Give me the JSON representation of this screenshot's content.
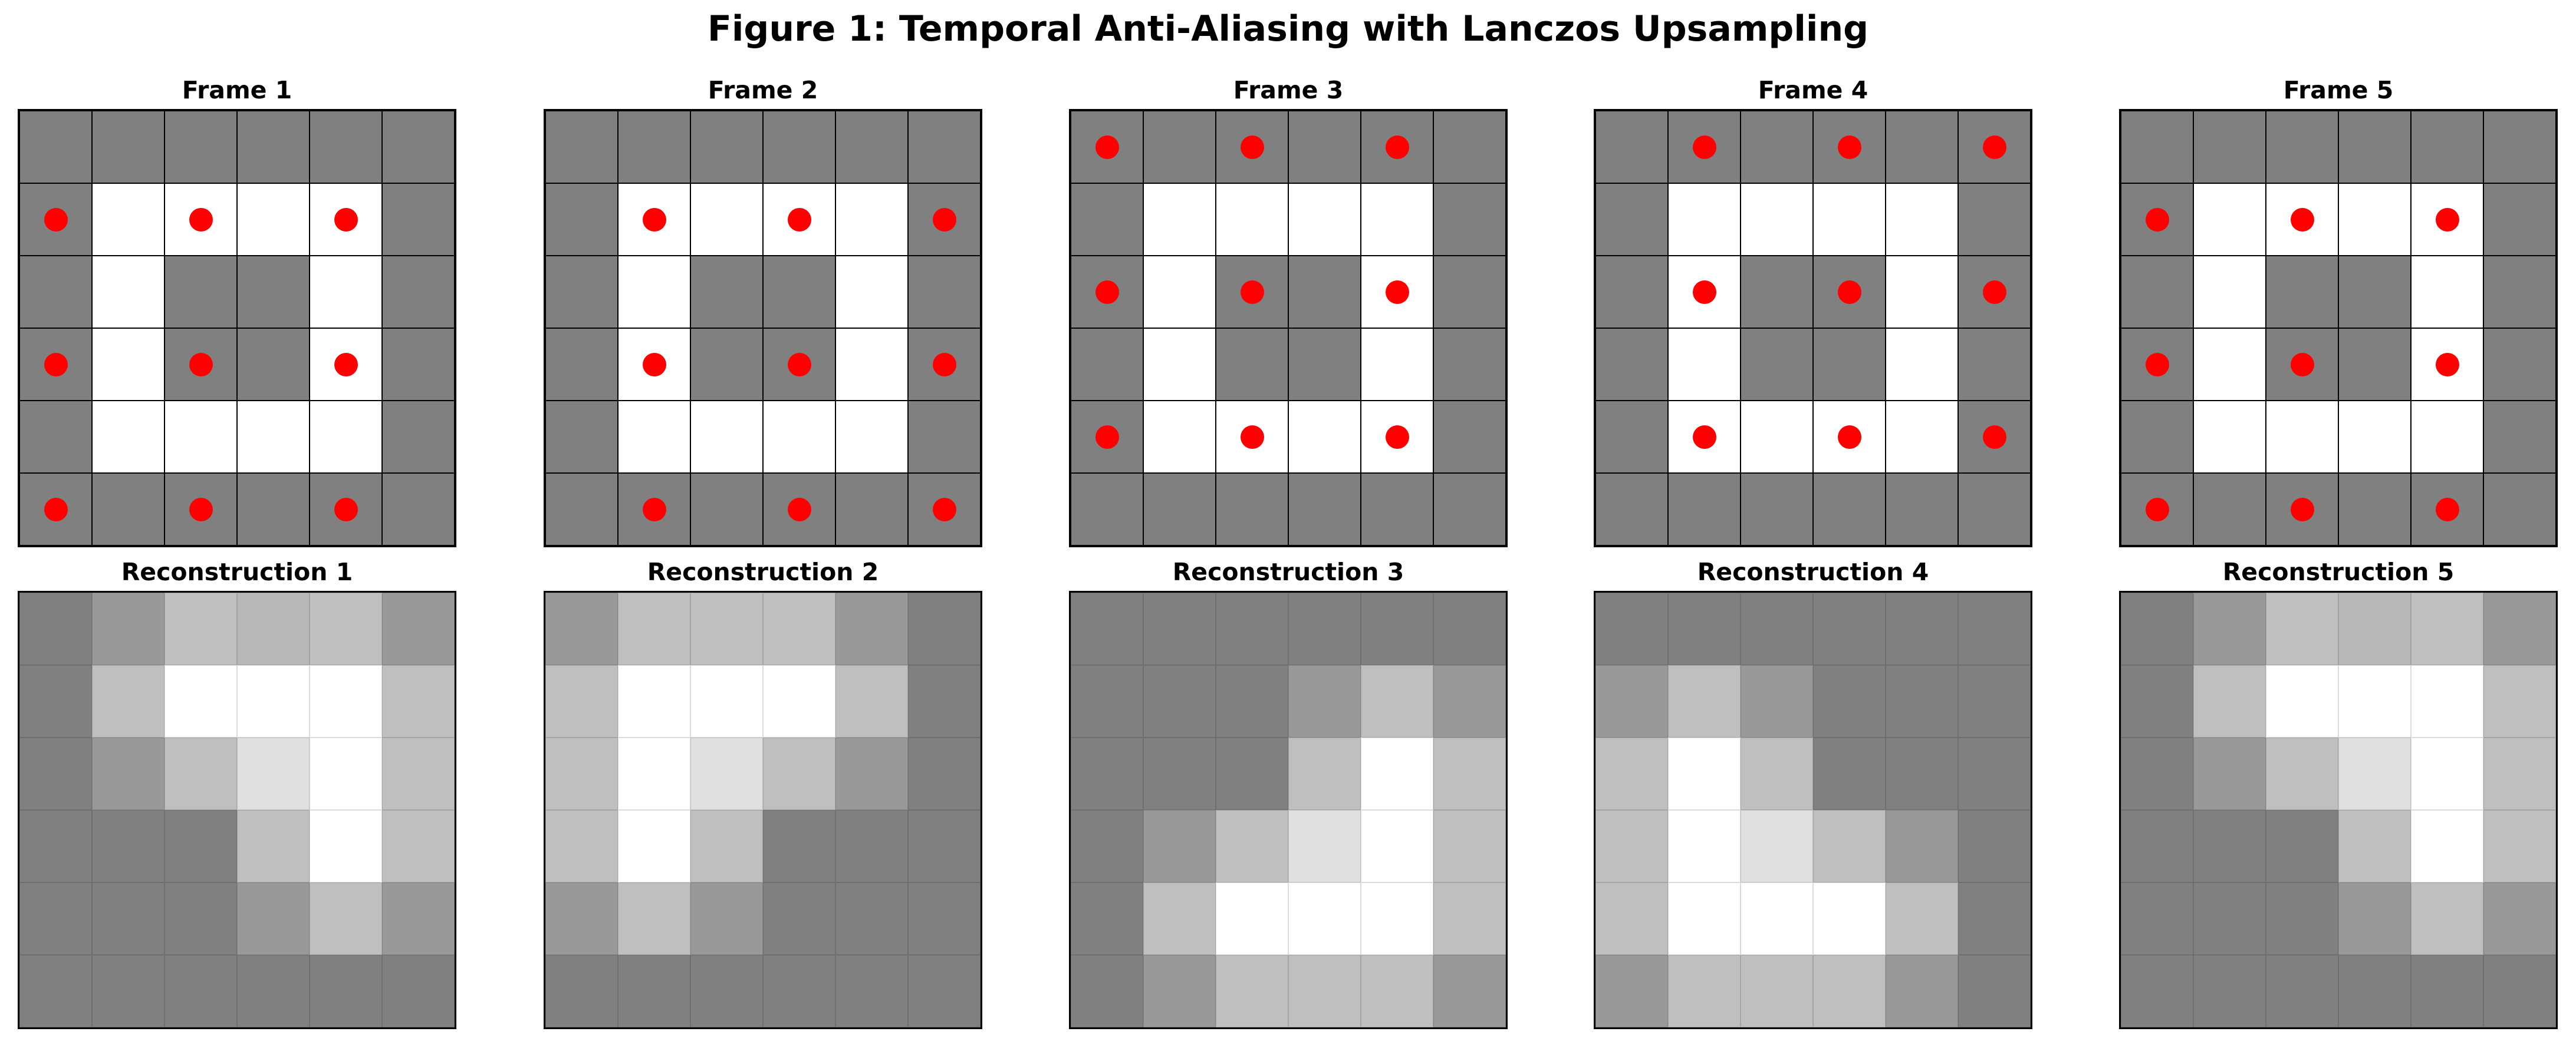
{
  "figure": {
    "title": "Figure 1: Temporal Anti-Aliasing with Lanczos Upsampling"
  },
  "colors": {
    "dark": "#808080",
    "light": "#ffffff",
    "sample_dot": "#ff0000"
  },
  "frames": [
    {
      "title": "Frame 1",
      "cells": [
        [
          0,
          0,
          0,
          0,
          0,
          0
        ],
        [
          0,
          1,
          1,
          1,
          1,
          0
        ],
        [
          0,
          1,
          0,
          0,
          1,
          0
        ],
        [
          0,
          1,
          0,
          0,
          1,
          0
        ],
        [
          0,
          1,
          1,
          1,
          1,
          0
        ],
        [
          0,
          0,
          0,
          0,
          0,
          0
        ]
      ],
      "samples": [
        [
          1,
          0
        ],
        [
          1,
          2
        ],
        [
          1,
          4
        ],
        [
          3,
          0
        ],
        [
          3,
          2
        ],
        [
          3,
          4
        ],
        [
          5,
          0
        ],
        [
          5,
          2
        ],
        [
          5,
          4
        ]
      ]
    },
    {
      "title": "Frame 2",
      "cells": [
        [
          0,
          0,
          0,
          0,
          0,
          0
        ],
        [
          0,
          1,
          1,
          1,
          1,
          0
        ],
        [
          0,
          1,
          0,
          0,
          1,
          0
        ],
        [
          0,
          1,
          0,
          0,
          1,
          0
        ],
        [
          0,
          1,
          1,
          1,
          1,
          0
        ],
        [
          0,
          0,
          0,
          0,
          0,
          0
        ]
      ],
      "samples": [
        [
          1,
          1
        ],
        [
          1,
          3
        ],
        [
          1,
          5
        ],
        [
          3,
          1
        ],
        [
          3,
          3
        ],
        [
          3,
          5
        ],
        [
          5,
          1
        ],
        [
          5,
          3
        ],
        [
          5,
          5
        ]
      ]
    },
    {
      "title": "Frame 3",
      "cells": [
        [
          0,
          0,
          0,
          0,
          0,
          0
        ],
        [
          0,
          1,
          1,
          1,
          1,
          0
        ],
        [
          0,
          1,
          0,
          0,
          1,
          0
        ],
        [
          0,
          1,
          0,
          0,
          1,
          0
        ],
        [
          0,
          1,
          1,
          1,
          1,
          0
        ],
        [
          0,
          0,
          0,
          0,
          0,
          0
        ]
      ],
      "samples": [
        [
          0,
          0
        ],
        [
          0,
          2
        ],
        [
          0,
          4
        ],
        [
          2,
          0
        ],
        [
          2,
          2
        ],
        [
          2,
          4
        ],
        [
          4,
          0
        ],
        [
          4,
          2
        ],
        [
          4,
          4
        ]
      ]
    },
    {
      "title": "Frame 4",
      "cells": [
        [
          0,
          0,
          0,
          0,
          0,
          0
        ],
        [
          0,
          1,
          1,
          1,
          1,
          0
        ],
        [
          0,
          1,
          0,
          0,
          1,
          0
        ],
        [
          0,
          1,
          0,
          0,
          1,
          0
        ],
        [
          0,
          1,
          1,
          1,
          1,
          0
        ],
        [
          0,
          0,
          0,
          0,
          0,
          0
        ]
      ],
      "samples": [
        [
          0,
          1
        ],
        [
          0,
          3
        ],
        [
          0,
          5
        ],
        [
          2,
          1
        ],
        [
          2,
          3
        ],
        [
          2,
          5
        ],
        [
          4,
          1
        ],
        [
          4,
          3
        ],
        [
          4,
          5
        ]
      ]
    },
    {
      "title": "Frame 5",
      "cells": [
        [
          0,
          0,
          0,
          0,
          0,
          0
        ],
        [
          0,
          1,
          1,
          1,
          1,
          0
        ],
        [
          0,
          1,
          0,
          0,
          1,
          0
        ],
        [
          0,
          1,
          0,
          0,
          1,
          0
        ],
        [
          0,
          1,
          1,
          1,
          1,
          0
        ],
        [
          0,
          0,
          0,
          0,
          0,
          0
        ]
      ],
      "samples": [
        [
          1,
          0
        ],
        [
          1,
          2
        ],
        [
          1,
          4
        ],
        [
          3,
          0
        ],
        [
          3,
          2
        ],
        [
          3,
          4
        ],
        [
          5,
          0
        ],
        [
          5,
          2
        ],
        [
          5,
          4
        ]
      ]
    }
  ],
  "reconstructions": [
    {
      "title": "Reconstruction 1",
      "cells": [
        [
          0.5,
          0.6,
          0.75,
          0.72,
          0.75,
          0.6
        ],
        [
          0.5,
          0.75,
          1.0,
          1.0,
          1.0,
          0.75
        ],
        [
          0.5,
          0.6,
          0.75,
          0.88,
          1.0,
          0.75
        ],
        [
          0.5,
          0.5,
          0.5,
          0.75,
          1.0,
          0.75
        ],
        [
          0.5,
          0.5,
          0.5,
          0.6,
          0.75,
          0.6
        ],
        [
          0.5,
          0.5,
          0.5,
          0.5,
          0.5,
          0.5
        ]
      ]
    },
    {
      "title": "Reconstruction 2",
      "cells": [
        [
          0.6,
          0.75,
          0.75,
          0.75,
          0.6,
          0.5
        ],
        [
          0.75,
          1.0,
          1.0,
          1.0,
          0.75,
          0.5
        ],
        [
          0.75,
          1.0,
          0.88,
          0.75,
          0.6,
          0.5
        ],
        [
          0.75,
          1.0,
          0.75,
          0.5,
          0.5,
          0.5
        ],
        [
          0.6,
          0.75,
          0.6,
          0.5,
          0.5,
          0.5
        ],
        [
          0.5,
          0.5,
          0.5,
          0.5,
          0.5,
          0.5
        ]
      ]
    },
    {
      "title": "Reconstruction 3",
      "cells": [
        [
          0.5,
          0.5,
          0.5,
          0.5,
          0.5,
          0.5
        ],
        [
          0.5,
          0.5,
          0.5,
          0.6,
          0.75,
          0.6
        ],
        [
          0.5,
          0.5,
          0.5,
          0.75,
          1.0,
          0.75
        ],
        [
          0.5,
          0.6,
          0.75,
          0.88,
          1.0,
          0.75
        ],
        [
          0.5,
          0.75,
          1.0,
          1.0,
          1.0,
          0.75
        ],
        [
          0.5,
          0.6,
          0.75,
          0.75,
          0.75,
          0.6
        ]
      ]
    },
    {
      "title": "Reconstruction 4",
      "cells": [
        [
          0.5,
          0.5,
          0.5,
          0.5,
          0.5,
          0.5
        ],
        [
          0.6,
          0.75,
          0.6,
          0.5,
          0.5,
          0.5
        ],
        [
          0.75,
          1.0,
          0.75,
          0.5,
          0.5,
          0.5
        ],
        [
          0.75,
          1.0,
          0.88,
          0.75,
          0.6,
          0.5
        ],
        [
          0.75,
          1.0,
          1.0,
          1.0,
          0.75,
          0.5
        ],
        [
          0.6,
          0.75,
          0.75,
          0.75,
          0.6,
          0.5
        ]
      ]
    },
    {
      "title": "Reconstruction 5",
      "cells": [
        [
          0.5,
          0.6,
          0.75,
          0.72,
          0.75,
          0.6
        ],
        [
          0.5,
          0.75,
          1.0,
          1.0,
          1.0,
          0.75
        ],
        [
          0.5,
          0.6,
          0.75,
          0.88,
          1.0,
          0.75
        ],
        [
          0.5,
          0.5,
          0.5,
          0.75,
          1.0,
          0.75
        ],
        [
          0.5,
          0.5,
          0.5,
          0.6,
          0.75,
          0.6
        ],
        [
          0.5,
          0.5,
          0.5,
          0.5,
          0.5,
          0.5
        ]
      ]
    }
  ]
}
